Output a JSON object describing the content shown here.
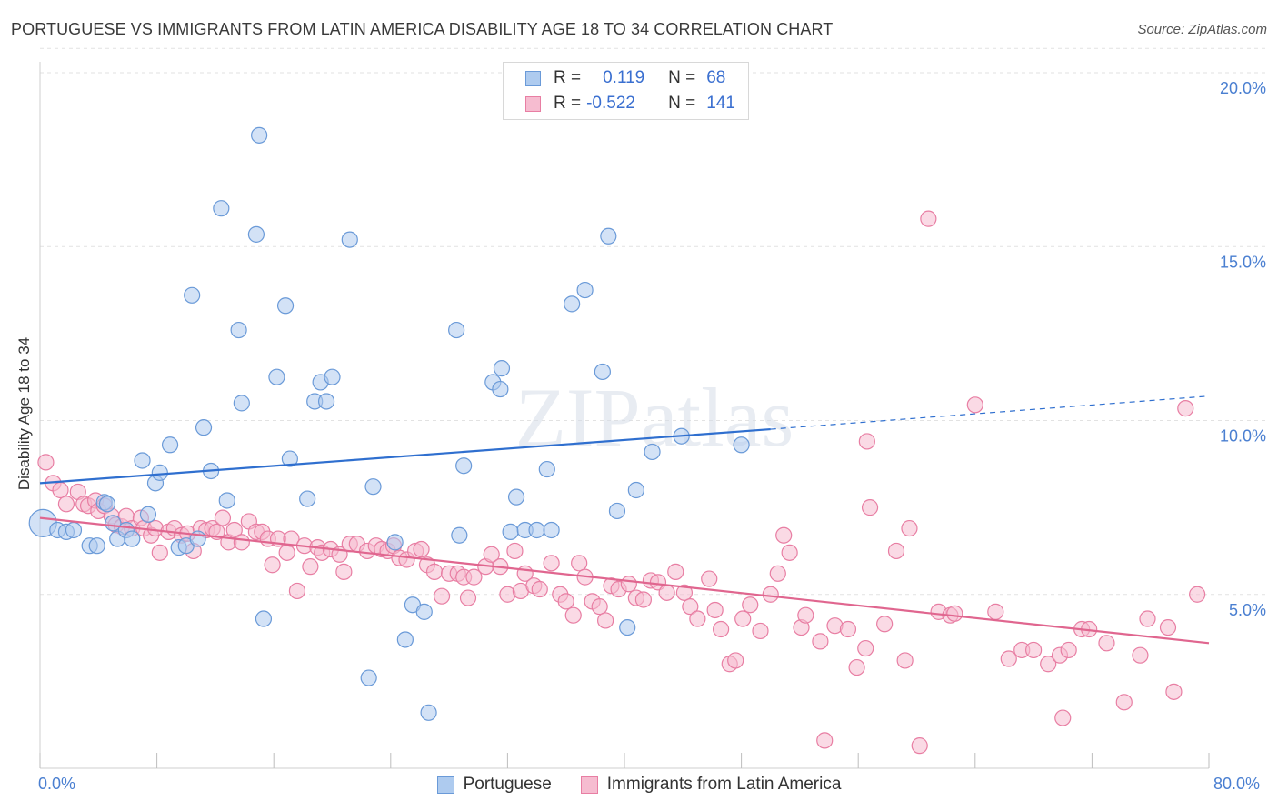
{
  "title": "PORTUGUESE VS IMMIGRANTS FROM LATIN AMERICA DISABILITY AGE 18 TO 34 CORRELATION CHART",
  "source": "Source: ZipAtlas.com",
  "watermark": "ZIPatlas",
  "legend": {
    "rows": [
      {
        "r_label": "R =",
        "r_value": "0.119",
        "n_label": "N =",
        "n_value": "68"
      },
      {
        "r_label": "R =",
        "r_value": "-0.522",
        "n_label": "N =",
        "n_value": "141"
      }
    ]
  },
  "bottom_legend": [
    "Portuguese",
    "Immigrants from Latin America"
  ],
  "colors": {
    "blue_fill": "#aecbef",
    "blue_stroke": "#6a9ad8",
    "blue_line": "#2f6fcf",
    "pink_fill": "#f6bcd0",
    "pink_stroke": "#e87ea3",
    "pink_line": "#e0668f",
    "axis_text": "#4a7fd1",
    "grid": "#e2e2e2"
  },
  "chart_data": {
    "type": "scatter",
    "title": "PORTUGUESE VS IMMIGRANTS FROM LATIN AMERICA DISABILITY AGE 18 TO 34 CORRELATION CHART",
    "xlabel": "",
    "ylabel": "Disability Age 18 to 34",
    "xlim": [
      0,
      80
    ],
    "ylim": [
      0,
      20
    ],
    "x_tick_labels": [
      "0.0%",
      "80.0%"
    ],
    "y_ticks": [
      5,
      10,
      15,
      20
    ],
    "y_tick_labels": [
      "5.0%",
      "10.0%",
      "15.0%",
      "20.0%"
    ],
    "grid": true,
    "legend_position": "top-center",
    "series": [
      {
        "name": "Portuguese",
        "color": "#aecbef",
        "R": 0.119,
        "N": 68,
        "trend": {
          "x0": 0,
          "y0": 8.2,
          "x1": 50,
          "y1": 9.75,
          "dashed_to_x": 80,
          "dashed_to_y": 10.7
        },
        "points": [
          [
            0.2,
            7.05
          ],
          [
            1.2,
            6.85
          ],
          [
            1.8,
            6.8
          ],
          [
            2.3,
            6.85
          ],
          [
            3.4,
            6.4
          ],
          [
            3.9,
            6.4
          ],
          [
            4.4,
            7.65
          ],
          [
            4.6,
            7.6
          ],
          [
            5,
            7.05
          ],
          [
            5.3,
            6.6
          ],
          [
            5.9,
            6.85
          ],
          [
            6.3,
            6.6
          ],
          [
            7,
            8.85
          ],
          [
            7.4,
            7.3
          ],
          [
            7.9,
            8.2
          ],
          [
            8.2,
            8.5
          ],
          [
            8.9,
            9.3
          ],
          [
            9.5,
            6.35
          ],
          [
            10,
            6.4
          ],
          [
            10.4,
            13.6
          ],
          [
            10.8,
            6.6
          ],
          [
            11.2,
            9.8
          ],
          [
            11.7,
            8.55
          ],
          [
            12.4,
            16.1
          ],
          [
            12.8,
            7.7
          ],
          [
            13.6,
            12.6
          ],
          [
            13.8,
            10.5
          ],
          [
            14.8,
            15.35
          ],
          [
            15,
            18.2
          ],
          [
            15.3,
            4.3
          ],
          [
            16.2,
            11.25
          ],
          [
            16.8,
            13.3
          ],
          [
            17.1,
            8.9
          ],
          [
            18.3,
            7.75
          ],
          [
            18.8,
            10.55
          ],
          [
            19.2,
            11.1
          ],
          [
            19.6,
            10.55
          ],
          [
            20,
            11.25
          ],
          [
            21.2,
            15.2
          ],
          [
            22.5,
            2.6
          ],
          [
            22.8,
            8.1
          ],
          [
            24.3,
            6.5
          ],
          [
            25,
            3.7
          ],
          [
            25.5,
            4.7
          ],
          [
            26.3,
            4.5
          ],
          [
            26.6,
            1.6
          ],
          [
            28.5,
            12.6
          ],
          [
            28.7,
            6.7
          ],
          [
            29,
            8.7
          ],
          [
            31,
            11.1
          ],
          [
            31.5,
            10.9
          ],
          [
            31.6,
            11.5
          ],
          [
            32.2,
            6.8
          ],
          [
            32.6,
            7.8
          ],
          [
            33.2,
            6.85
          ],
          [
            34,
            6.85
          ],
          [
            34.7,
            8.6
          ],
          [
            35,
            6.85
          ],
          [
            36.4,
            13.35
          ],
          [
            37.3,
            13.75
          ],
          [
            38.5,
            11.4
          ],
          [
            38.9,
            15.3
          ],
          [
            39.5,
            7.4
          ],
          [
            40.2,
            4.05
          ],
          [
            40.8,
            8.0
          ],
          [
            41.9,
            9.1
          ],
          [
            43.9,
            9.55
          ],
          [
            48,
            9.3
          ]
        ]
      },
      {
        "name": "Immigrants from Latin America",
        "color": "#f6bcd0",
        "R": -0.522,
        "N": 141,
        "trend": {
          "x0": 0,
          "y0": 7.2,
          "x1": 80,
          "y1": 3.6
        },
        "points": [
          [
            0.4,
            8.8
          ],
          [
            0.9,
            8.2
          ],
          [
            1.4,
            8.0
          ],
          [
            1.8,
            7.6
          ],
          [
            2.6,
            7.95
          ],
          [
            3,
            7.6
          ],
          [
            3.3,
            7.55
          ],
          [
            3.8,
            7.7
          ],
          [
            4,
            7.4
          ],
          [
            4.4,
            7.55
          ],
          [
            4.9,
            7.25
          ],
          [
            5.2,
            7.0
          ],
          [
            5.6,
            6.95
          ],
          [
            5.9,
            7.25
          ],
          [
            6.3,
            6.9
          ],
          [
            6.9,
            7.2
          ],
          [
            7.1,
            6.9
          ],
          [
            7.6,
            6.7
          ],
          [
            7.9,
            6.9
          ],
          [
            8.2,
            6.2
          ],
          [
            8.8,
            6.8
          ],
          [
            9.2,
            6.9
          ],
          [
            9.7,
            6.7
          ],
          [
            10.1,
            6.75
          ],
          [
            10.5,
            6.25
          ],
          [
            11,
            6.9
          ],
          [
            11.4,
            6.85
          ],
          [
            11.8,
            6.9
          ],
          [
            12.1,
            6.8
          ],
          [
            12.5,
            7.2
          ],
          [
            12.9,
            6.5
          ],
          [
            13.3,
            6.85
          ],
          [
            13.8,
            6.5
          ],
          [
            14.3,
            7.1
          ],
          [
            14.8,
            6.8
          ],
          [
            15.2,
            6.8
          ],
          [
            15.6,
            6.6
          ],
          [
            15.9,
            5.85
          ],
          [
            16.3,
            6.6
          ],
          [
            16.9,
            6.2
          ],
          [
            17.2,
            6.6
          ],
          [
            17.6,
            5.1
          ],
          [
            18.1,
            6.4
          ],
          [
            18.5,
            5.8
          ],
          [
            19,
            6.35
          ],
          [
            19.3,
            6.2
          ],
          [
            19.9,
            6.3
          ],
          [
            20.5,
            6.15
          ],
          [
            20.8,
            5.65
          ],
          [
            21.2,
            6.45
          ],
          [
            21.7,
            6.45
          ],
          [
            22.4,
            6.25
          ],
          [
            23,
            6.4
          ],
          [
            23.4,
            6.3
          ],
          [
            23.8,
            6.25
          ],
          [
            24.2,
            6.4
          ],
          [
            24.6,
            6.05
          ],
          [
            25.1,
            6.0
          ],
          [
            25.7,
            6.25
          ],
          [
            26.1,
            6.3
          ],
          [
            26.5,
            5.85
          ],
          [
            27,
            5.65
          ],
          [
            27.5,
            4.95
          ],
          [
            28,
            5.6
          ],
          [
            28.6,
            5.6
          ],
          [
            29,
            5.5
          ],
          [
            29.3,
            4.9
          ],
          [
            29.7,
            5.5
          ],
          [
            30.5,
            5.8
          ],
          [
            30.9,
            6.15
          ],
          [
            31.5,
            5.8
          ],
          [
            32,
            5.0
          ],
          [
            32.5,
            6.25
          ],
          [
            32.9,
            5.1
          ],
          [
            33.2,
            5.6
          ],
          [
            33.8,
            5.25
          ],
          [
            34.2,
            5.15
          ],
          [
            35,
            5.9
          ],
          [
            35.6,
            5.0
          ],
          [
            36,
            4.8
          ],
          [
            36.5,
            4.4
          ],
          [
            36.9,
            5.9
          ],
          [
            37.3,
            5.5
          ],
          [
            37.8,
            4.8
          ],
          [
            38.3,
            4.65
          ],
          [
            38.7,
            4.25
          ],
          [
            39.1,
            5.25
          ],
          [
            39.6,
            5.15
          ],
          [
            40.3,
            5.3
          ],
          [
            40.8,
            4.9
          ],
          [
            41.3,
            4.85
          ],
          [
            41.8,
            5.4
          ],
          [
            42.3,
            5.35
          ],
          [
            42.9,
            5.05
          ],
          [
            43.5,
            5.65
          ],
          [
            44.1,
            5.05
          ],
          [
            44.5,
            4.65
          ],
          [
            45,
            4.3
          ],
          [
            45.8,
            5.45
          ],
          [
            46.2,
            4.55
          ],
          [
            46.6,
            4.0
          ],
          [
            47.2,
            3.0
          ],
          [
            47.6,
            3.1
          ],
          [
            48.1,
            4.3
          ],
          [
            48.6,
            4.7
          ],
          [
            49.3,
            3.95
          ],
          [
            50,
            5.0
          ],
          [
            50.5,
            5.6
          ],
          [
            50.9,
            6.7
          ],
          [
            51.3,
            6.2
          ],
          [
            52.1,
            4.05
          ],
          [
            52.4,
            4.4
          ],
          [
            53.4,
            3.65
          ],
          [
            53.7,
            0.8
          ],
          [
            54.4,
            4.1
          ],
          [
            55.3,
            4.0
          ],
          [
            55.9,
            2.9
          ],
          [
            56.5,
            3.45
          ],
          [
            56.6,
            9.4
          ],
          [
            56.8,
            7.5
          ],
          [
            57.8,
            4.15
          ],
          [
            59.2,
            3.1
          ],
          [
            58.6,
            6.25
          ],
          [
            59.5,
            6.9
          ],
          [
            60.2,
            0.65
          ],
          [
            60.8,
            15.8
          ],
          [
            61.5,
            4.5
          ],
          [
            62.3,
            4.4
          ],
          [
            62.6,
            4.45
          ],
          [
            64,
            10.45
          ],
          [
            65.4,
            4.5
          ],
          [
            66.3,
            3.15
          ],
          [
            67.2,
            3.4
          ],
          [
            68,
            3.4
          ],
          [
            69,
            3.0
          ],
          [
            69.8,
            3.25
          ],
          [
            70.4,
            3.4
          ],
          [
            71.3,
            4.0
          ],
          [
            71.8,
            4.0
          ],
          [
            73,
            3.6
          ],
          [
            74.2,
            1.9
          ],
          [
            75.3,
            3.25
          ],
          [
            75.8,
            4.3
          ],
          [
            77.2,
            4.05
          ],
          [
            77.6,
            2.2
          ],
          [
            78.4,
            10.35
          ],
          [
            79.2,
            5.0
          ],
          [
            70,
            1.45
          ]
        ]
      }
    ]
  }
}
